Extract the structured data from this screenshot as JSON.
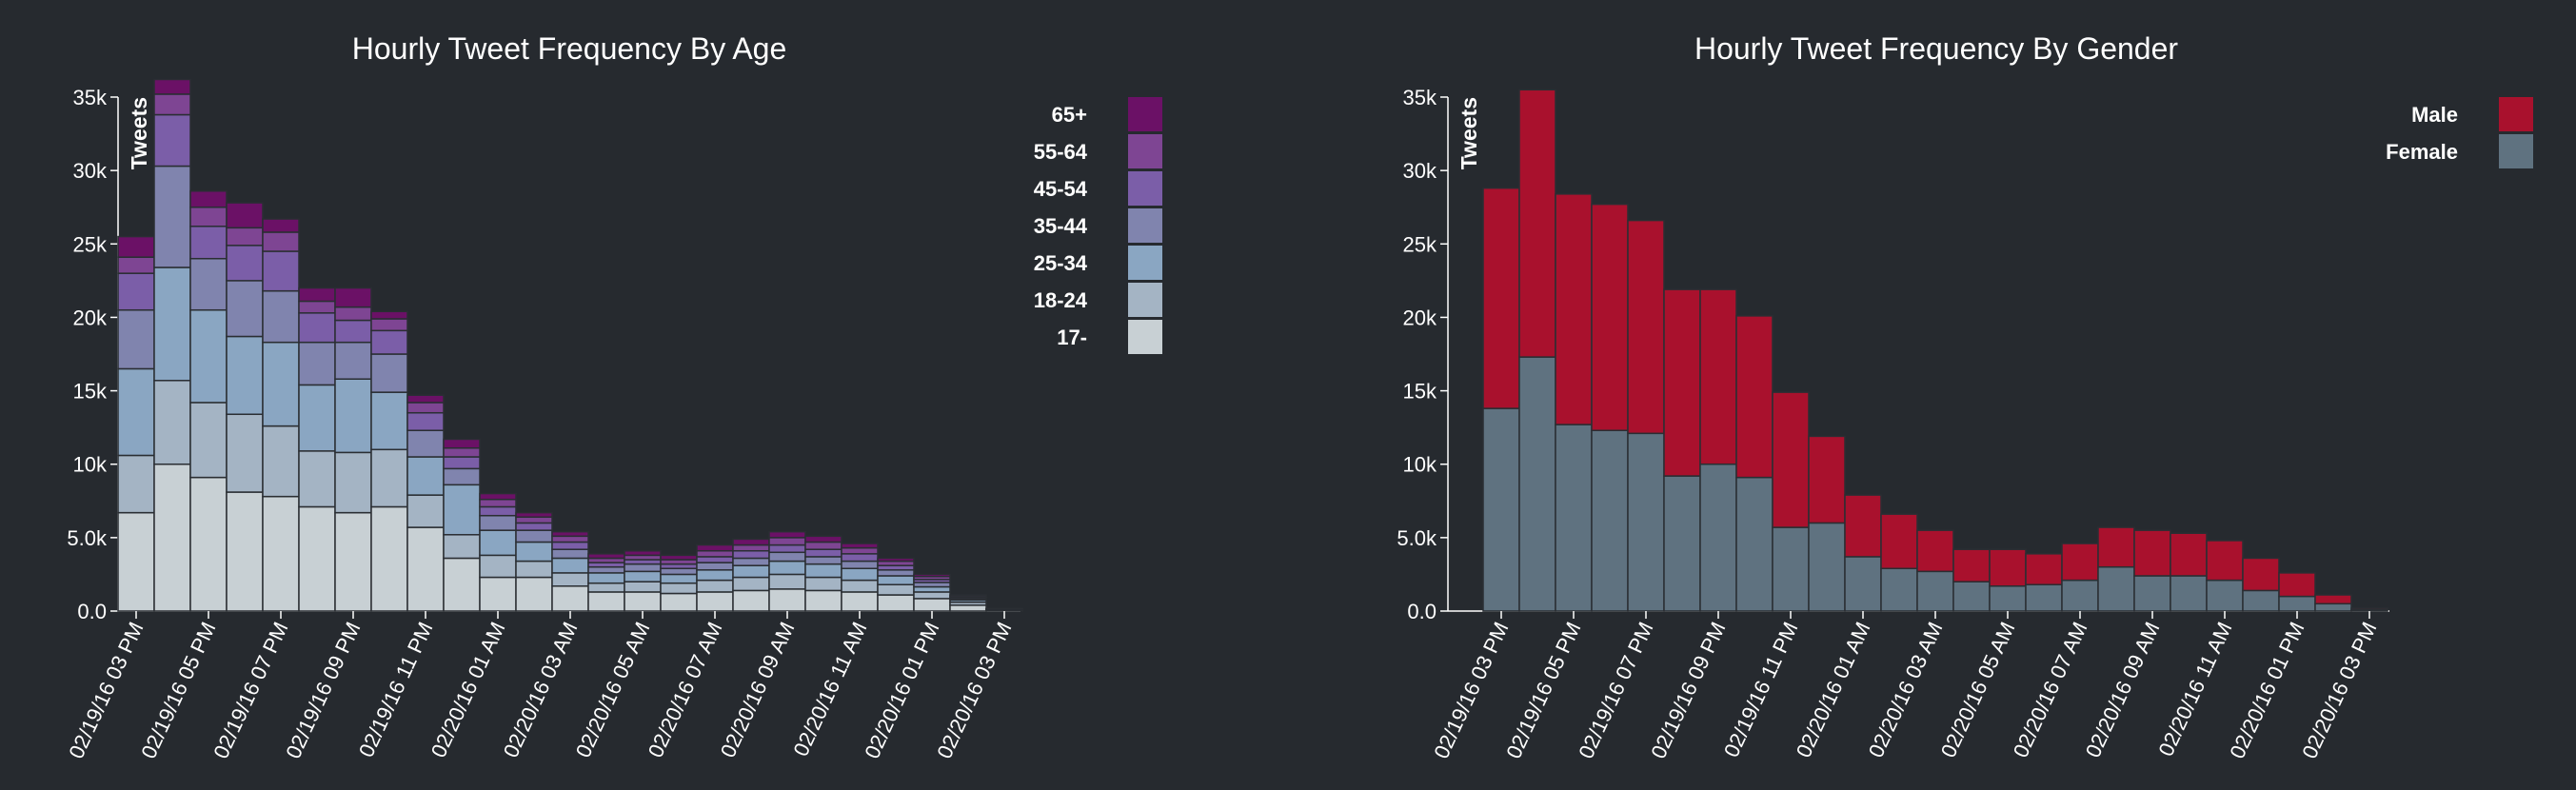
{
  "chart_data": [
    {
      "type": "bar",
      "stacked": true,
      "title": "Hourly Tweet Frequency By Age",
      "ylabel": "Tweets",
      "ylim": [
        0,
        35000
      ],
      "yticks": [
        0,
        5000,
        10000,
        15000,
        20000,
        25000,
        30000,
        35000
      ],
      "ytick_labels": [
        "0.0",
        "5.0k",
        "10k",
        "15k",
        "20k",
        "25k",
        "30k",
        "35k"
      ],
      "x": [
        "02/19/16 03 PM",
        "02/19/16 04 PM",
        "02/19/16 05 PM",
        "02/19/16 06 PM",
        "02/19/16 07 PM",
        "02/19/16 08 PM",
        "02/19/16 09 PM",
        "02/19/16 10 PM",
        "02/19/16 11 PM",
        "02/20/16 12 AM",
        "02/20/16 01 AM",
        "02/20/16 02 AM",
        "02/20/16 03 AM",
        "02/20/16 04 AM",
        "02/20/16 05 AM",
        "02/20/16 06 AM",
        "02/20/16 07 AM",
        "02/20/16 08 AM",
        "02/20/16 09 AM",
        "02/20/16 10 AM",
        "02/20/16 11 AM",
        "02/20/16 12 PM",
        "02/20/16 01 PM",
        "02/20/16 02 PM",
        "02/20/16 03 PM"
      ],
      "xtick_labels": [
        "02/19/16 03 PM",
        "02/19/16 05 PM",
        "02/19/16 07 PM",
        "02/19/16 09 PM",
        "02/19/16 11 PM",
        "02/20/16 01 AM",
        "02/20/16 03 AM",
        "02/20/16 05 AM",
        "02/20/16 07 AM",
        "02/20/16 09 AM",
        "02/20/16 11 AM",
        "02/20/16 01 PM",
        "02/20/16 03 PM"
      ],
      "legend_position": "top-right",
      "series": [
        {
          "name": "17-",
          "color": "#c8d0d4",
          "values": [
            6700,
            10000,
            9100,
            8100,
            7800,
            7100,
            6700,
            7100,
            5700,
            3600,
            2300,
            2300,
            1700,
            1300,
            1300,
            1200,
            1300,
            1400,
            1500,
            1400,
            1300,
            1100,
            850,
            400,
            80
          ]
        },
        {
          "name": "18-24",
          "color": "#a4b4c4",
          "values": [
            3900,
            5700,
            5100,
            5300,
            4800,
            3800,
            4100,
            3900,
            2200,
            1600,
            1500,
            1100,
            900,
            600,
            700,
            700,
            800,
            900,
            1000,
            900,
            800,
            700,
            450,
            200,
            40
          ]
        },
        {
          "name": "25-34",
          "color": "#8aa6c2",
          "values": [
            5900,
            7700,
            6300,
            5300,
            5700,
            4500,
            5000,
            3900,
            2600,
            3400,
            1700,
            1300,
            1000,
            700,
            700,
            600,
            700,
            800,
            900,
            900,
            800,
            600,
            350,
            150,
            20
          ]
        },
        {
          "name": "35-44",
          "color": "#8084ae",
          "values": [
            4000,
            6900,
            3500,
            3800,
            3500,
            2900,
            2500,
            2600,
            1800,
            1100,
            1000,
            800,
            600,
            400,
            500,
            400,
            500,
            500,
            600,
            500,
            500,
            400,
            300,
            100,
            10
          ]
        },
        {
          "name": "45-54",
          "color": "#7b5ea8",
          "values": [
            2500,
            3500,
            2200,
            2400,
            2700,
            2000,
            1500,
            1600,
            1200,
            800,
            600,
            500,
            500,
            300,
            300,
            300,
            400,
            500,
            500,
            500,
            500,
            300,
            200,
            100,
            10
          ]
        },
        {
          "name": "55-64",
          "color": "#7e4593",
          "values": [
            1100,
            1400,
            1300,
            1200,
            1300,
            800,
            900,
            800,
            700,
            600,
            500,
            400,
            400,
            300,
            300,
            300,
            400,
            400,
            500,
            500,
            400,
            300,
            200,
            100,
            10
          ]
        },
        {
          "name": "65+",
          "color": "#6b1166",
          "values": [
            1400,
            1000,
            1100,
            1700,
            900,
            900,
            1300,
            500,
            500,
            600,
            400,
            300,
            300,
            300,
            300,
            300,
            400,
            400,
            400,
            400,
            300,
            200,
            150,
            50,
            0
          ]
        }
      ]
    },
    {
      "type": "bar",
      "stacked": true,
      "title": "Hourly Tweet Frequency By Gender",
      "ylabel": "Tweets",
      "ylim": [
        0,
        35000
      ],
      "yticks": [
        0,
        5000,
        10000,
        15000,
        20000,
        25000,
        30000,
        35000
      ],
      "ytick_labels": [
        "0.0",
        "5.0k",
        "10k",
        "15k",
        "20k",
        "25k",
        "30k",
        "35k"
      ],
      "x": [
        "02/19/16 03 PM",
        "02/19/16 04 PM",
        "02/19/16 05 PM",
        "02/19/16 06 PM",
        "02/19/16 07 PM",
        "02/19/16 08 PM",
        "02/19/16 09 PM",
        "02/19/16 10 PM",
        "02/19/16 11 PM",
        "02/20/16 12 AM",
        "02/20/16 01 AM",
        "02/20/16 02 AM",
        "02/20/16 03 AM",
        "02/20/16 04 AM",
        "02/20/16 05 AM",
        "02/20/16 06 AM",
        "02/20/16 07 AM",
        "02/20/16 08 AM",
        "02/20/16 09 AM",
        "02/20/16 10 AM",
        "02/20/16 11 AM",
        "02/20/16 12 PM",
        "02/20/16 01 PM",
        "02/20/16 02 PM",
        "02/20/16 03 PM"
      ],
      "xtick_labels": [
        "02/19/16 03 PM",
        "02/19/16 05 PM",
        "02/19/16 07 PM",
        "02/19/16 09 PM",
        "02/19/16 11 PM",
        "02/20/16 01 AM",
        "02/20/16 03 AM",
        "02/20/16 05 AM",
        "02/20/16 07 AM",
        "02/20/16 09 AM",
        "02/20/16 11 AM",
        "02/20/16 01 PM",
        "02/20/16 03 PM"
      ],
      "legend_position": "top-right",
      "series": [
        {
          "name": "Female",
          "color": "#5f7280",
          "values": [
            13800,
            17300,
            12700,
            12300,
            12100,
            9200,
            10000,
            9100,
            5700,
            6000,
            3700,
            2900,
            2700,
            2000,
            1700,
            1800,
            2100,
            3000,
            2400,
            2400,
            2100,
            1400,
            1000,
            500,
            100
          ]
        },
        {
          "name": "Male",
          "color": "#a9112d",
          "values": [
            15000,
            18200,
            15700,
            15400,
            14500,
            12700,
            11900,
            11000,
            9200,
            5900,
            4200,
            3700,
            2800,
            2200,
            2500,
            2100,
            2500,
            2700,
            3100,
            2900,
            2700,
            2200,
            1600,
            600,
            100
          ]
        }
      ]
    }
  ]
}
